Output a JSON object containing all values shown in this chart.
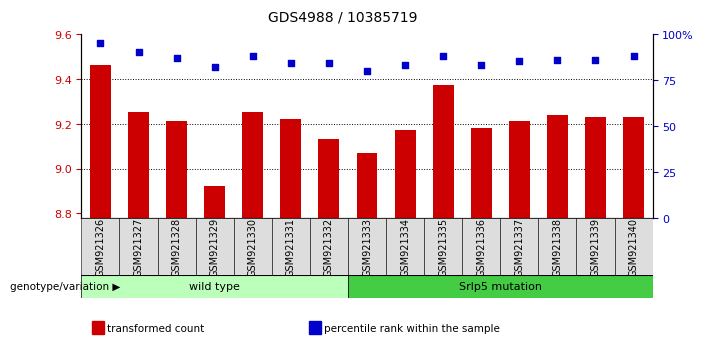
{
  "title": "GDS4988 / 10385719",
  "samples": [
    "GSM921326",
    "GSM921327",
    "GSM921328",
    "GSM921329",
    "GSM921330",
    "GSM921331",
    "GSM921332",
    "GSM921333",
    "GSM921334",
    "GSM921335",
    "GSM921336",
    "GSM921337",
    "GSM921338",
    "GSM921339",
    "GSM921340"
  ],
  "transformed_counts": [
    9.46,
    9.25,
    9.21,
    8.92,
    9.25,
    9.22,
    9.13,
    9.07,
    9.17,
    9.37,
    9.18,
    9.21,
    9.24,
    9.23,
    9.23
  ],
  "percentile_ranks": [
    95,
    90,
    87,
    82,
    88,
    84,
    84,
    80,
    83,
    88,
    83,
    85,
    86,
    86,
    88
  ],
  "bar_color": "#cc0000",
  "dot_color": "#0000cc",
  "ylim_left": [
    8.78,
    9.6
  ],
  "ylim_right": [
    0,
    100
  ],
  "yticks_left": [
    8.8,
    9.0,
    9.2,
    9.4,
    9.6
  ],
  "yticks_right": [
    0,
    25,
    50,
    75,
    100
  ],
  "ylabel_right_labels": [
    "0",
    "25",
    "50",
    "75",
    "100%"
  ],
  "groups": [
    {
      "label": "wild type",
      "start": 0,
      "end": 7,
      "color": "#bbffbb"
    },
    {
      "label": "Srlp5 mutation",
      "start": 7,
      "end": 15,
      "color": "#44cc44"
    }
  ],
  "xlabel_genotype": "genotype/variation",
  "legend_items": [
    {
      "label": "transformed count",
      "color": "#cc0000"
    },
    {
      "label": "percentile rank within the sample",
      "color": "#0000cc"
    }
  ],
  "background_color": "#ffffff",
  "plot_bg": "#ffffff",
  "tick_label_fontsize": 7,
  "axis_label_color_left": "#cc0000",
  "axis_label_color_right": "#0000cc",
  "title_fontsize": 10
}
